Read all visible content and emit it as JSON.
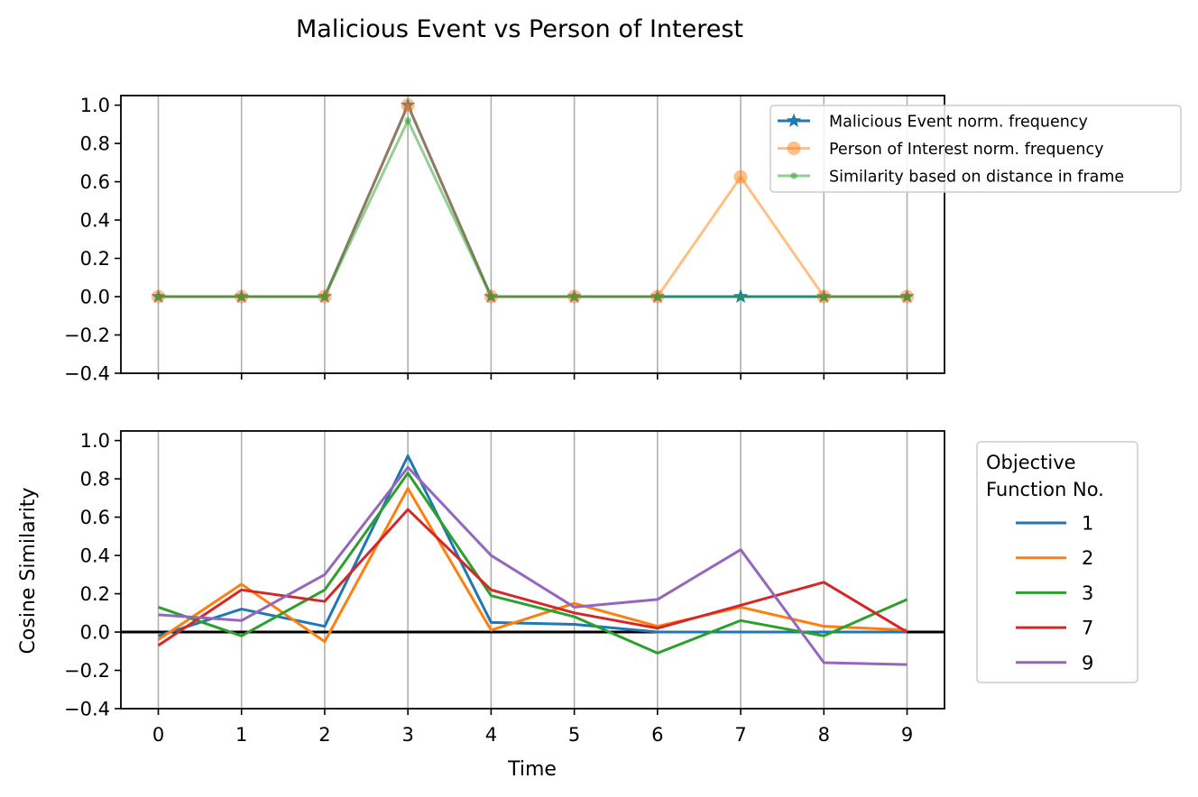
{
  "chart_data": [
    {
      "type": "line",
      "title": "Malicious Event vs Person of Interest",
      "xlabel": "",
      "ylabel": "",
      "x": [
        0,
        1,
        2,
        3,
        4,
        5,
        6,
        7,
        8,
        9
      ],
      "xlim": [
        -0.45,
        9.45
      ],
      "ylim": [
        -0.4,
        1.05
      ],
      "yticks": [
        -0.4,
        -0.2,
        0.0,
        0.2,
        0.4,
        0.6,
        0.8,
        1.0
      ],
      "ytick_labels": [
        "−0.4",
        "−0.2",
        "0.0",
        "0.2",
        "0.4",
        "0.6",
        "0.8",
        "1.0"
      ],
      "grid": "vertical",
      "legend_position": "top-right",
      "series": [
        {
          "name": "Malicious Event norm. frequency",
          "color": "#1f77b4",
          "marker": "star",
          "alpha": 1.0,
          "values": [
            0,
            0,
            0,
            1.0,
            0,
            0,
            0,
            0,
            0,
            0
          ]
        },
        {
          "name": "Person of Interest norm. frequency",
          "color": "#ff7f0e",
          "marker": "circle",
          "alpha": 0.5,
          "values": [
            0,
            0,
            0,
            1.0,
            0,
            0,
            0,
            0.625,
            0,
            0
          ]
        },
        {
          "name": "Similarity based on distance in frame",
          "color": "#2ca02c",
          "marker": "dot",
          "alpha": 0.5,
          "values": [
            0,
            0,
            0,
            0.92,
            0,
            0,
            0,
            0,
            0,
            0
          ]
        }
      ]
    },
    {
      "type": "line",
      "title": "",
      "xlabel": "Time",
      "ylabel": "Cosine Similarity",
      "x": [
        0,
        1,
        2,
        3,
        4,
        5,
        6,
        7,
        8,
        9
      ],
      "xticks": [
        "0",
        "1",
        "2",
        "3",
        "4",
        "5",
        "6",
        "7",
        "8",
        "9"
      ],
      "xlim": [
        -0.45,
        9.45
      ],
      "ylim": [
        -0.4,
        1.05
      ],
      "yticks": [
        -0.4,
        -0.2,
        0.0,
        0.2,
        0.4,
        0.6,
        0.8,
        1.0
      ],
      "ytick_labels": [
        "−0.4",
        "−0.2",
        "0.0",
        "0.2",
        "0.4",
        "0.6",
        "0.8",
        "1.0"
      ],
      "grid": "vertical",
      "hline": 0.0,
      "legend_title": [
        "Objective",
        "Function No."
      ],
      "legend_position": "right",
      "series": [
        {
          "name": "1",
          "color": "#1f77b4",
          "values": [
            -0.02,
            0.12,
            0.03,
            0.92,
            0.05,
            0.04,
            0.0,
            0.0,
            0.0,
            0.0
          ]
        },
        {
          "name": "2",
          "color": "#ff7f0e",
          "values": [
            -0.04,
            0.25,
            -0.05,
            0.75,
            0.01,
            0.15,
            0.03,
            0.13,
            0.03,
            0.01
          ]
        },
        {
          "name": "3",
          "color": "#2ca02c",
          "values": [
            0.13,
            -0.02,
            0.22,
            0.83,
            0.19,
            0.08,
            -0.11,
            0.06,
            -0.02,
            0.17
          ]
        },
        {
          "name": "7",
          "color": "#d62728",
          "values": [
            -0.07,
            0.22,
            0.16,
            0.64,
            0.22,
            0.1,
            0.02,
            0.14,
            0.26,
            0.0
          ]
        },
        {
          "name": "9",
          "color": "#9467bd",
          "values": [
            0.09,
            0.06,
            0.3,
            0.86,
            0.4,
            0.13,
            0.17,
            0.43,
            -0.16,
            -0.17
          ]
        }
      ]
    }
  ]
}
